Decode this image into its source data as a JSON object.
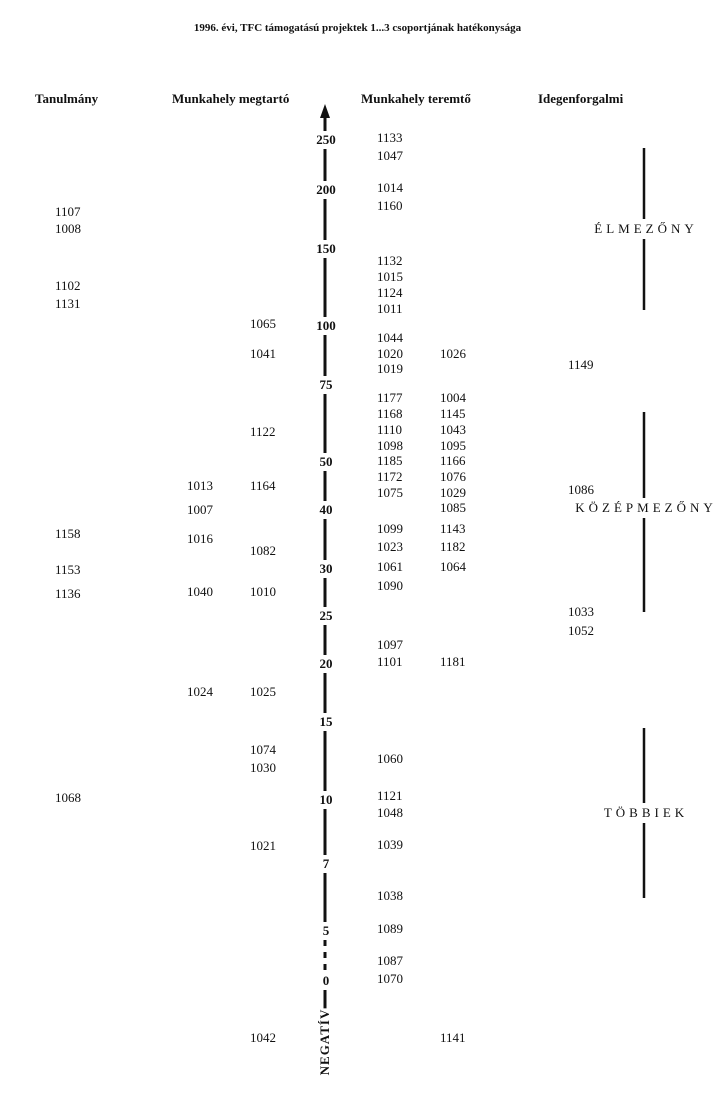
{
  "title": "1996. évi, TFC támogatású projektek 1...3  csoportjának hatékonysága",
  "columns": [
    {
      "heading": "Tanulmány",
      "ids": [
        "1107",
        "1008",
        "1102",
        "1131",
        "1158",
        "1153",
        "1136",
        "1068"
      ]
    },
    {
      "heading": "Munkahely megtartó",
      "ids": [
        "1013",
        "1007",
        "1016",
        "1040",
        "1024",
        "1065",
        "1041",
        "1122",
        "1164",
        "1082",
        "1010",
        "1025",
        "1074",
        "1030",
        "1021",
        "1042"
      ]
    },
    {
      "heading": "Munkahely teremtő",
      "ids": [
        "1133",
        "1047",
        "1014",
        "1160",
        "1132",
        "1015",
        "1124",
        "1011",
        "1044",
        "1020",
        "1019",
        "1177",
        "1168",
        "1110",
        "1098",
        "1185",
        "1172",
        "1075",
        "1099",
        "1023",
        "1061",
        "1090",
        "1097",
        "1101",
        "1060",
        "1121",
        "1048",
        "1039",
        "1038",
        "1089",
        "1087",
        "1070",
        "1026",
        "1004",
        "1145",
        "1043",
        "1095",
        "1166",
        "1076",
        "1029",
        "1085",
        "1143",
        "1182",
        "1064",
        "1181",
        "1141"
      ]
    },
    {
      "heading": "Idegenforgalmi",
      "ids": [
        "1149",
        "1086",
        "1033",
        "1052"
      ]
    }
  ],
  "scale": [
    "250",
    "200",
    "150",
    "100",
    "75",
    "50",
    "40",
    "30",
    "25",
    "20",
    "15",
    "10",
    "7",
    "5",
    "0"
  ],
  "negative": "NEGATÍV",
  "zones": [
    "ÉLMEZŐNY",
    "KÖZÉPMEZŐNY",
    "TÖBBIEK"
  ]
}
